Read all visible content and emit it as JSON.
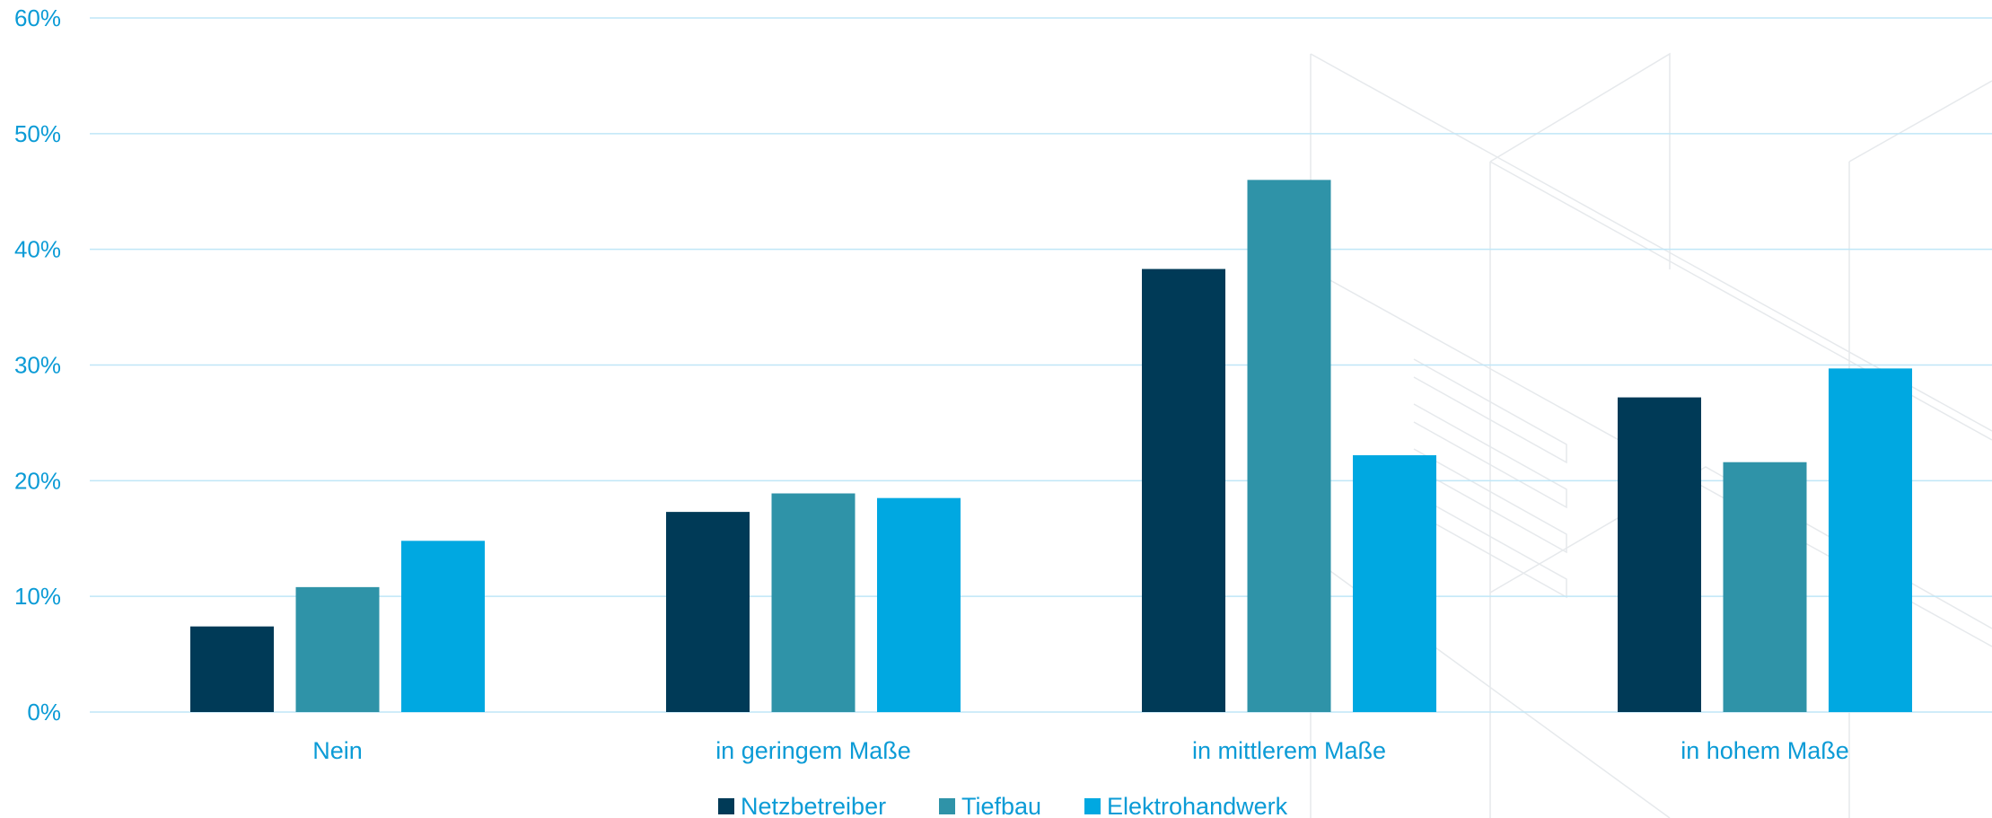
{
  "chart_data": {
    "type": "bar",
    "title": "",
    "xlabel": "",
    "ylabel": "",
    "categories": [
      "Nein",
      "in geringem Maße",
      "in mittlerem Maße",
      "in hohem Maße"
    ],
    "series": [
      {
        "name": "Netzbetreiber",
        "values": [
          7.4,
          17.3,
          38.3,
          27.2
        ]
      },
      {
        "name": "Tiefbau",
        "values": [
          10.8,
          18.9,
          46.0,
          21.6
        ]
      },
      {
        "name": "Elektrohandwerk",
        "values": [
          14.8,
          18.5,
          22.2,
          29.7
        ]
      }
    ],
    "ylim": [
      0,
      60
    ],
    "yticks": [
      "0%",
      "10%",
      "20%",
      "30%",
      "40%",
      "50%",
      "60%"
    ],
    "grid": true,
    "legend_position": "bottom-center",
    "colors": {
      "Netzbetreiber": "#003a57",
      "Tiefbau": "#2f93a8",
      "Elektrohandwerk": "#00a8e1",
      "text": "#0b9bd6",
      "grid": "#bfe6f7"
    }
  }
}
